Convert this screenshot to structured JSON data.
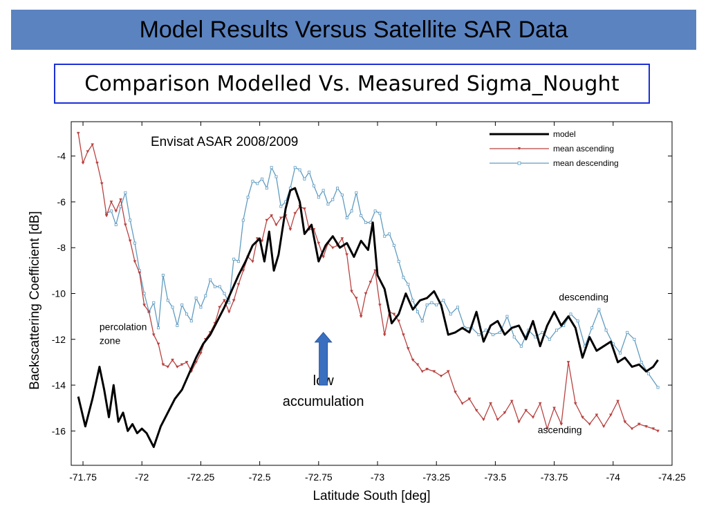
{
  "slide": {
    "title": "Model Results Versus Satellite SAR Data",
    "subtitle": "Comparison Modelled Vs. Measured Sigma_Nought"
  },
  "chart_data": {
    "type": "line",
    "title": "Envisat ASAR 2008/2009",
    "xlabel": "Latitude South [deg]",
    "ylabel": "Backscattering Coefficient [dB]",
    "xlim": [
      -71.7,
      -74.25
    ],
    "ylim": [
      -17.5,
      -2.5
    ],
    "x_ticks": [
      "-71.75",
      "-72",
      "-72.25",
      "-72.5",
      "-72.75",
      "-73",
      "-73.25",
      "-73.5",
      "-73.75",
      "-74",
      "-74.25"
    ],
    "x_tick_values": [
      -71.75,
      -72,
      -72.25,
      -72.5,
      -72.75,
      -73,
      -73.25,
      -73.5,
      -73.75,
      -74,
      -74.25
    ],
    "y_ticks": [
      "-4",
      "-6",
      "-8",
      "-10",
      "-12",
      "-14",
      "-16"
    ],
    "y_tick_values": [
      -4,
      -6,
      -8,
      -10,
      -12,
      -14,
      -16
    ],
    "legend_position": "top-right",
    "grid": false,
    "series": [
      {
        "name": "model",
        "color": "#000000",
        "marker": "none",
        "x": [
          -71.73,
          -71.76,
          -71.79,
          -71.82,
          -71.84,
          -71.86,
          -71.88,
          -71.9,
          -71.92,
          -71.94,
          -71.96,
          -71.98,
          -72.0,
          -72.02,
          -72.05,
          -72.08,
          -72.11,
          -72.14,
          -72.17,
          -72.2,
          -72.23,
          -72.26,
          -72.29,
          -72.32,
          -72.35,
          -72.38,
          -72.41,
          -72.44,
          -72.47,
          -72.5,
          -72.52,
          -72.54,
          -72.56,
          -72.58,
          -72.61,
          -72.63,
          -72.65,
          -72.67,
          -72.69,
          -72.72,
          -72.75,
          -72.78,
          -72.81,
          -72.84,
          -72.87,
          -72.9,
          -72.93,
          -72.96,
          -72.98,
          -73.0,
          -73.03,
          -73.06,
          -73.09,
          -73.12,
          -73.15,
          -73.18,
          -73.21,
          -73.24,
          -73.27,
          -73.3,
          -73.33,
          -73.36,
          -73.39,
          -73.42,
          -73.45,
          -73.48,
          -73.51,
          -73.54,
          -73.57,
          -73.6,
          -73.63,
          -73.66,
          -73.69,
          -73.72,
          -73.75,
          -73.78,
          -73.81,
          -73.84,
          -73.87,
          -73.9,
          -73.93,
          -73.96,
          -73.99,
          -74.02,
          -74.05,
          -74.08,
          -74.11,
          -74.14,
          -74.17,
          -74.19
        ],
        "y": [
          -14.5,
          -15.8,
          -14.6,
          -13.2,
          -14.2,
          -15.4,
          -14.0,
          -15.6,
          -15.2,
          -16.0,
          -15.7,
          -16.1,
          -15.9,
          -16.1,
          -16.7,
          -15.8,
          -15.2,
          -14.6,
          -14.2,
          -13.5,
          -12.8,
          -12.2,
          -11.8,
          -11.2,
          -10.6,
          -9.9,
          -9.2,
          -8.6,
          -7.9,
          -7.6,
          -8.6,
          -7.3,
          -9.0,
          -8.3,
          -6.3,
          -5.5,
          -5.4,
          -6.0,
          -7.4,
          -7.0,
          -8.6,
          -7.9,
          -7.5,
          -8.0,
          -7.8,
          -8.4,
          -7.7,
          -8.1,
          -6.9,
          -9.2,
          -9.8,
          -11.3,
          -10.9,
          -10.0,
          -10.7,
          -10.3,
          -10.2,
          -9.9,
          -10.5,
          -11.8,
          -11.7,
          -11.5,
          -11.7,
          -10.8,
          -12.1,
          -11.4,
          -11.2,
          -11.8,
          -11.5,
          -11.4,
          -12.0,
          -11.2,
          -12.3,
          -11.4,
          -10.8,
          -11.4,
          -11.0,
          -11.5,
          -12.8,
          -11.9,
          -12.5,
          -12.3,
          -12.1,
          -13.0,
          -12.8,
          -13.2,
          -13.1,
          -13.4,
          -13.2,
          -12.9
        ]
      },
      {
        "name": "mean ascending",
        "color": "#b8413f",
        "marker": "triangle-down",
        "x": [
          -71.73,
          -71.75,
          -71.77,
          -71.79,
          -71.81,
          -71.83,
          -71.85,
          -71.87,
          -71.89,
          -71.91,
          -71.93,
          -71.95,
          -71.97,
          -71.99,
          -72.01,
          -72.03,
          -72.05,
          -72.07,
          -72.09,
          -72.11,
          -72.13,
          -72.15,
          -72.17,
          -72.19,
          -72.21,
          -72.23,
          -72.25,
          -72.27,
          -72.29,
          -72.31,
          -72.33,
          -72.35,
          -72.37,
          -72.39,
          -72.41,
          -72.43,
          -72.45,
          -72.47,
          -72.49,
          -72.51,
          -72.53,
          -72.55,
          -72.57,
          -72.59,
          -72.61,
          -72.63,
          -72.65,
          -72.67,
          -72.69,
          -72.71,
          -72.73,
          -72.75,
          -72.77,
          -72.79,
          -72.81,
          -72.83,
          -72.85,
          -72.87,
          -72.89,
          -72.91,
          -72.93,
          -72.95,
          -72.97,
          -72.99,
          -73.01,
          -73.03,
          -73.05,
          -73.07,
          -73.09,
          -73.11,
          -73.13,
          -73.15,
          -73.17,
          -73.19,
          -73.21,
          -73.24,
          -73.27,
          -73.3,
          -73.33,
          -73.36,
          -73.39,
          -73.42,
          -73.45,
          -73.48,
          -73.51,
          -73.54,
          -73.57,
          -73.6,
          -73.63,
          -73.66,
          -73.69,
          -73.72,
          -73.75,
          -73.78,
          -73.81,
          -73.84,
          -73.87,
          -73.9,
          -73.93,
          -73.96,
          -73.99,
          -74.02,
          -74.05,
          -74.08,
          -74.11,
          -74.14,
          -74.17,
          -74.19
        ],
        "y": [
          -3.0,
          -4.3,
          -3.8,
          -3.5,
          -4.3,
          -5.2,
          -6.6,
          -6.0,
          -6.4,
          -5.9,
          -7.0,
          -7.7,
          -8.6,
          -9.1,
          -10.5,
          -10.8,
          -11.8,
          -12.2,
          -13.1,
          -13.2,
          -12.9,
          -13.2,
          -13.1,
          -13.0,
          -13.4,
          -13.0,
          -12.6,
          -12.0,
          -11.7,
          -11.3,
          -10.6,
          -10.3,
          -10.8,
          -10.3,
          -9.6,
          -9.0,
          -8.4,
          -8.6,
          -7.6,
          -7.7,
          -6.8,
          -6.6,
          -7.0,
          -6.7,
          -6.6,
          -7.2,
          -6.5,
          -6.2,
          -6.3,
          -7.2,
          -7.2,
          -7.8,
          -8.4,
          -7.8,
          -8.0,
          -7.9,
          -7.6,
          -8.3,
          -9.9,
          -10.2,
          -11.0,
          -10.0,
          -9.5,
          -9.0,
          -10.5,
          -11.8,
          -10.8,
          -10.9,
          -11.2,
          -11.8,
          -12.4,
          -12.9,
          -13.1,
          -13.4,
          -13.3,
          -13.4,
          -13.6,
          -13.4,
          -14.3,
          -14.8,
          -14.6,
          -15.1,
          -15.5,
          -14.8,
          -15.5,
          -15.2,
          -14.7,
          -15.6,
          -15.1,
          -15.4,
          -14.8,
          -15.9,
          -15.0,
          -15.7,
          -13.0,
          -14.8,
          -15.4,
          -15.7,
          -15.3,
          -15.8,
          -15.3,
          -14.7,
          -15.6,
          -15.9,
          -15.7,
          -15.8,
          -15.9,
          -16.0
        ]
      },
      {
        "name": "mean descending",
        "color": "#5f9bc0",
        "marker": "square",
        "x": [
          -71.85,
          -71.87,
          -71.89,
          -71.91,
          -71.93,
          -71.95,
          -71.97,
          -71.99,
          -72.01,
          -72.03,
          -72.05,
          -72.07,
          -72.09,
          -72.11,
          -72.13,
          -72.15,
          -72.17,
          -72.19,
          -72.21,
          -72.23,
          -72.25,
          -72.27,
          -72.29,
          -72.31,
          -72.33,
          -72.35,
          -72.37,
          -72.39,
          -72.41,
          -72.43,
          -72.45,
          -72.47,
          -72.49,
          -72.51,
          -72.53,
          -72.55,
          -72.57,
          -72.59,
          -72.61,
          -72.63,
          -72.65,
          -72.67,
          -72.69,
          -72.71,
          -72.73,
          -72.75,
          -72.77,
          -72.79,
          -72.81,
          -72.83,
          -72.85,
          -72.87,
          -72.89,
          -72.91,
          -72.93,
          -72.95,
          -72.97,
          -72.99,
          -73.01,
          -73.03,
          -73.05,
          -73.07,
          -73.09,
          -73.11,
          -73.13,
          -73.15,
          -73.17,
          -73.19,
          -73.21,
          -73.23,
          -73.25,
          -73.28,
          -73.31,
          -73.34,
          -73.37,
          -73.4,
          -73.43,
          -73.46,
          -73.49,
          -73.52,
          -73.55,
          -73.58,
          -73.61,
          -73.64,
          -73.67,
          -73.7,
          -73.73,
          -73.76,
          -73.79,
          -73.82,
          -73.85,
          -73.88,
          -73.91,
          -73.94,
          -73.97,
          -74.0,
          -74.03,
          -74.06,
          -74.09,
          -74.12,
          -74.15,
          -74.19
        ],
        "y": [
          -6.5,
          -6.4,
          -7.0,
          -6.2,
          -5.6,
          -6.8,
          -7.8,
          -9.0,
          -10.0,
          -10.8,
          -10.4,
          -11.5,
          -9.2,
          -10.3,
          -10.6,
          -11.4,
          -10.5,
          -10.9,
          -11.2,
          -10.2,
          -10.6,
          -10.1,
          -9.4,
          -9.7,
          -9.7,
          -10.0,
          -10.4,
          -8.5,
          -8.6,
          -6.8,
          -5.8,
          -5.1,
          -5.2,
          -5.0,
          -5.4,
          -4.5,
          -4.9,
          -6.2,
          -6.0,
          -5.4,
          -4.5,
          -4.6,
          -5.0,
          -4.7,
          -5.3,
          -5.8,
          -5.5,
          -6.1,
          -5.9,
          -5.4,
          -5.7,
          -6.7,
          -6.4,
          -5.6,
          -6.6,
          -6.9,
          -6.9,
          -6.4,
          -6.5,
          -7.5,
          -7.4,
          -7.9,
          -8.6,
          -9.3,
          -9.6,
          -10.3,
          -10.8,
          -11.2,
          -10.5,
          -10.4,
          -10.5,
          -10.3,
          -10.9,
          -10.6,
          -11.5,
          -11.5,
          -11.8,
          -11.6,
          -11.8,
          -11.7,
          -11.0,
          -11.9,
          -12.3,
          -11.6,
          -11.9,
          -11.7,
          -12.0,
          -11.6,
          -11.4,
          -10.9,
          -11.2,
          -12.3,
          -11.5,
          -10.7,
          -11.6,
          -12.2,
          -12.6,
          -11.7,
          -12.0,
          -13.0,
          -13.5,
          -14.1
        ]
      }
    ],
    "annotations": [
      {
        "text": "percolation",
        "x": -71.82,
        "y": -11.6
      },
      {
        "text": "zone",
        "x": -71.82,
        "y": -12.2
      },
      {
        "text": "low",
        "x": -72.77,
        "y": -14.0
      },
      {
        "text": "accumulation",
        "x": -72.77,
        "y": -14.9
      },
      {
        "text": "descending",
        "x": -73.77,
        "y": -10.3
      },
      {
        "text": "ascending",
        "x": -73.68,
        "y": -16.1
      }
    ],
    "arrow": {
      "x": -72.77,
      "y_from": -14.0,
      "y_to": -11.7,
      "color": "#3a6fc0"
    }
  }
}
